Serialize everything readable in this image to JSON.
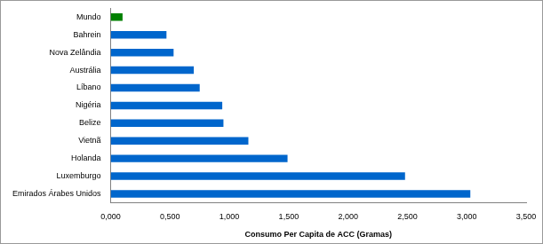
{
  "chart_data": {
    "type": "bar",
    "orientation": "horizontal",
    "x_label": "Consumo Per Capita de ACC (Gramas)",
    "categories": [
      "Mundo",
      "Bahrein",
      "Nova Zelândia",
      "Austrália",
      "Líbano",
      "Nigéria",
      "Belize",
      "Vietnã",
      "Holanda",
      "Luxemburgo",
      "Emirados Árabes Unidos"
    ],
    "values": [
      0.1,
      0.47,
      0.53,
      0.7,
      0.75,
      0.94,
      0.95,
      1.16,
      1.49,
      2.48,
      3.03
    ],
    "colors": [
      "#008000",
      "#0066cc",
      "#0066cc",
      "#0066cc",
      "#0066cc",
      "#0066cc",
      "#0066cc",
      "#0066cc",
      "#0066cc",
      "#0066cc",
      "#0066cc"
    ],
    "xlim": [
      0,
      3.5
    ],
    "xticks": [
      {
        "value": 0,
        "label": "0,000"
      },
      {
        "value": 0.5,
        "label": "0,500"
      },
      {
        "value": 1,
        "label": "1,000"
      },
      {
        "value": 1.5,
        "label": "1,500"
      },
      {
        "value": 2,
        "label": "2,000"
      },
      {
        "value": 2.5,
        "label": "2,500"
      },
      {
        "value": 3,
        "label": "3,000"
      },
      {
        "value": 3.5,
        "label": "3,500"
      }
    ],
    "grid": false
  }
}
